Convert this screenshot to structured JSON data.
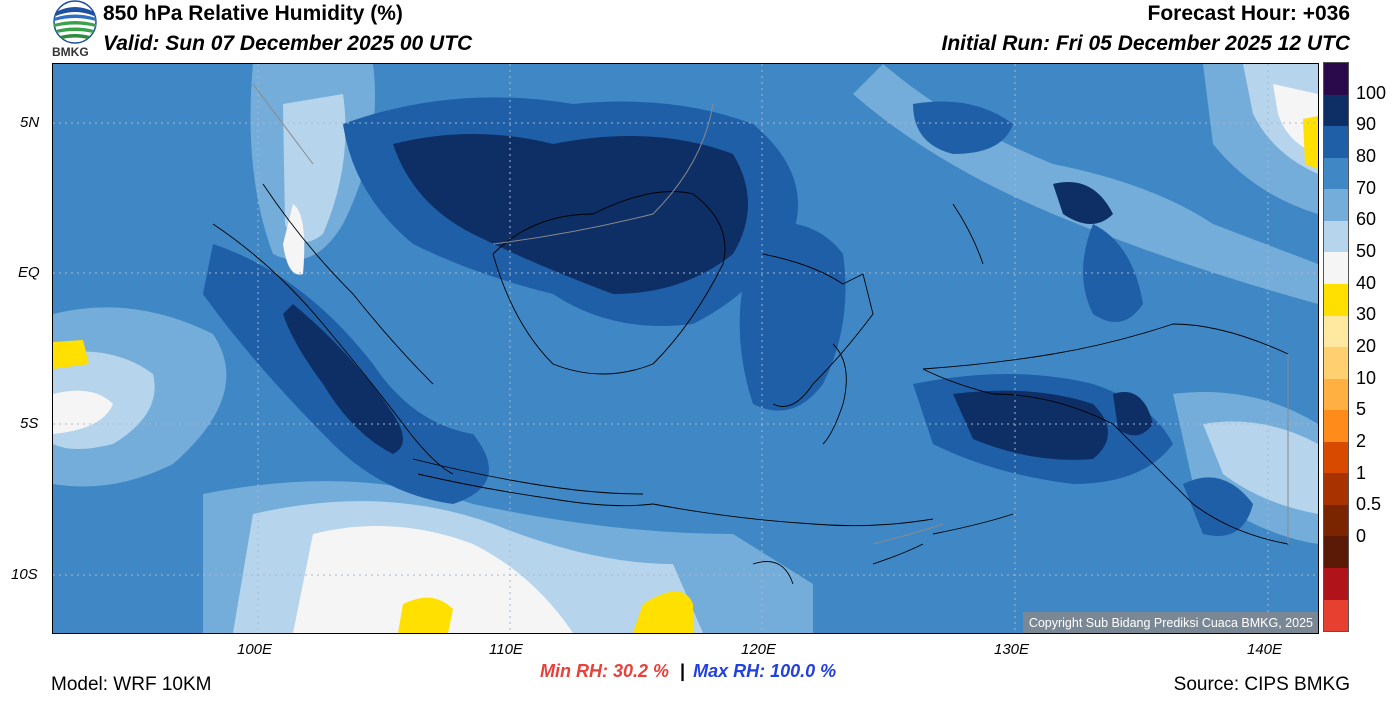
{
  "header": {
    "title": "850 hPa Relative Humidity (%)",
    "valid": "Valid: Sun 07 December 2025 00 UTC",
    "forecast_hour": "Forecast Hour: +036",
    "initial_run": "Initial Run: Fri 05 December 2025 12 UTC",
    "logo_text": "BMKG"
  },
  "map": {
    "lat_labels": [
      "5N",
      "EQ",
      "5S",
      "10S"
    ],
    "lon_labels": [
      "100E",
      "110E",
      "120E",
      "130E",
      "140E"
    ],
    "copyright": "Copyright Sub Bidang Prediksi Cuaca BMKG, 2025"
  },
  "colorbar": {
    "labels": [
      "100",
      "90",
      "80",
      "70",
      "60",
      "50",
      "40",
      "30",
      "20",
      "10",
      "5",
      "2",
      "1",
      "0.5",
      "0"
    ],
    "colors": [
      "#2a0a4a",
      "#0d2f66",
      "#1f5fa8",
      "#3f88c5",
      "#74add9",
      "#b6d4ec",
      "#f5f5f5",
      "#ffe000",
      "#ffe8a0",
      "#ffcf70",
      "#ffb040",
      "#ff8c1a",
      "#d84a00",
      "#a83200",
      "#7a2400",
      "#5a1a05",
      "#b0141a",
      "#e84030"
    ]
  },
  "stats": {
    "min_label": "Min RH:  30.2 %",
    "separator": "|",
    "max_label": "Max RH: 100.0 %",
    "min_color": "#e8403a",
    "max_color": "#2040e0"
  },
  "footer": {
    "model": "Model: WRF 10KM",
    "source": "Source: CIPS BMKG"
  }
}
